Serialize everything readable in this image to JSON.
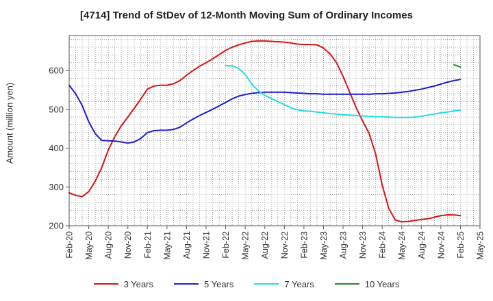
{
  "chart_data": {
    "type": "line",
    "title": "[4714]  Trend of StDev of 12-Month Moving Sum of Ordinary Incomes",
    "ylabel": "Amount (million yen)",
    "xlabel": "",
    "x_ticks": [
      "Feb-20",
      "May-20",
      "Aug-20",
      "Nov-20",
      "Feb-21",
      "May-21",
      "Aug-21",
      "Nov-21",
      "Feb-22",
      "May-22",
      "Aug-22",
      "Nov-22",
      "Feb-23",
      "May-23",
      "Aug-23",
      "Nov-23",
      "Feb-24",
      "May-24",
      "Aug-24",
      "Nov-24",
      "Feb-25",
      "May-25"
    ],
    "y_ticks": [
      200,
      300,
      400,
      500,
      600
    ],
    "ylim": [
      200,
      690
    ],
    "grid": true,
    "legend_position": "bottom",
    "series": [
      {
        "name": "3 Years",
        "color": "#dd1111",
        "x": [
          "Feb-20",
          "Mar-20",
          "Apr-20",
          "May-20",
          "Jun-20",
          "Jul-20",
          "Aug-20",
          "Sep-20",
          "Oct-20",
          "Nov-20",
          "Dec-20",
          "Jan-21",
          "Feb-21",
          "Mar-21",
          "Apr-21",
          "May-21",
          "Jun-21",
          "Jul-21",
          "Aug-21",
          "Sep-21",
          "Oct-21",
          "Nov-21",
          "Dec-21",
          "Jan-22",
          "Feb-22",
          "Mar-22",
          "Apr-22",
          "May-22",
          "Jun-22",
          "Jul-22",
          "Aug-22",
          "Sep-22",
          "Oct-22",
          "Nov-22",
          "Dec-22",
          "Jan-23",
          "Feb-23",
          "Mar-23",
          "Apr-23",
          "May-23",
          "Jun-23",
          "Jul-23",
          "Aug-23",
          "Sep-23",
          "Oct-23",
          "Nov-23",
          "Dec-23",
          "Jan-24",
          "Feb-24",
          "Mar-24",
          "Apr-24",
          "May-24",
          "Jun-24",
          "Jul-24",
          "Aug-24",
          "Sep-24",
          "Oct-24",
          "Nov-24",
          "Dec-24",
          "Jan-25",
          "Feb-25"
        ],
        "values": [
          285,
          278,
          275,
          288,
          315,
          350,
          395,
          430,
          458,
          480,
          503,
          527,
          552,
          560,
          562,
          562,
          566,
          574,
          588,
          600,
          611,
          620,
          630,
          641,
          652,
          660,
          666,
          671,
          675,
          676,
          676,
          675,
          674,
          673,
          671,
          668,
          667,
          667,
          666,
          658,
          643,
          620,
          585,
          545,
          505,
          470,
          438,
          385,
          305,
          245,
          215,
          210,
          211,
          214,
          216,
          218,
          222,
          226,
          228,
          228,
          226
        ]
      },
      {
        "name": "5 Years",
        "color": "#1c1ccf",
        "x": [
          "Feb-20",
          "Mar-20",
          "Apr-20",
          "May-20",
          "Jun-20",
          "Jul-20",
          "Aug-20",
          "Sep-20",
          "Oct-20",
          "Nov-20",
          "Dec-20",
          "Jan-21",
          "Feb-21",
          "Mar-21",
          "Apr-21",
          "May-21",
          "Jun-21",
          "Jul-21",
          "Aug-21",
          "Sep-21",
          "Oct-21",
          "Nov-21",
          "Dec-21",
          "Jan-22",
          "Feb-22",
          "Mar-22",
          "Apr-22",
          "May-22",
          "Jun-22",
          "Jul-22",
          "Aug-22",
          "Sep-22",
          "Oct-22",
          "Nov-22",
          "Dec-22",
          "Jan-23",
          "Feb-23",
          "Mar-23",
          "Apr-23",
          "May-23",
          "Jun-23",
          "Jul-23",
          "Aug-23",
          "Sep-23",
          "Oct-23",
          "Nov-23",
          "Dec-23",
          "Jan-24",
          "Feb-24",
          "Mar-24",
          "Apr-24",
          "May-24",
          "Jun-24",
          "Jul-24",
          "Aug-24",
          "Sep-24",
          "Oct-24",
          "Nov-24",
          "Dec-24",
          "Jan-25",
          "Feb-25"
        ],
        "values": [
          562,
          540,
          510,
          468,
          437,
          420,
          419,
          418,
          416,
          413,
          416,
          425,
          440,
          445,
          446,
          446,
          448,
          454,
          465,
          475,
          484,
          492,
          500,
          509,
          518,
          527,
          534,
          538,
          541,
          543,
          544,
          544,
          544,
          544,
          543,
          542,
          541,
          540,
          540,
          539,
          539,
          539,
          539,
          539,
          539,
          539,
          539,
          540,
          540,
          541,
          542,
          544,
          546,
          549,
          552,
          556,
          560,
          565,
          570,
          574,
          577
        ]
      },
      {
        "name": "7 Years",
        "color": "#22dede",
        "x": [
          "Feb-22",
          "Mar-22",
          "Apr-22",
          "May-22",
          "Jun-22",
          "Jul-22",
          "Aug-22",
          "Sep-22",
          "Oct-22",
          "Nov-22",
          "Dec-22",
          "Jan-23",
          "Feb-23",
          "Mar-23",
          "Apr-23",
          "May-23",
          "Jun-23",
          "Jul-23",
          "Aug-23",
          "Sep-23",
          "Oct-23",
          "Nov-23",
          "Dec-23",
          "Jan-24",
          "Feb-24",
          "Mar-24",
          "Apr-24",
          "May-24",
          "Jun-24",
          "Jul-24",
          "Aug-24",
          "Sep-24",
          "Oct-24",
          "Nov-24",
          "Dec-24",
          "Jan-25",
          "Feb-25"
        ],
        "values": [
          613,
          612,
          605,
          590,
          565,
          548,
          536,
          528,
          520,
          512,
          504,
          499,
          496,
          495,
          493,
          491,
          489,
          488,
          486,
          485,
          484,
          483,
          482,
          481,
          481,
          480,
          479,
          479,
          479,
          480,
          482,
          485,
          488,
          491,
          493,
          496,
          498
        ]
      },
      {
        "name": "10 Years",
        "color": "#228b22",
        "x": [
          "Jan-25",
          "Feb-25"
        ],
        "values": [
          615,
          609
        ]
      }
    ]
  }
}
